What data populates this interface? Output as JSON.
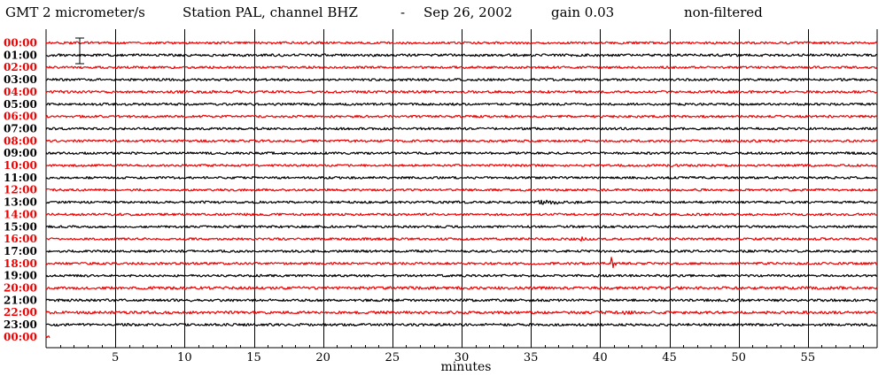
{
  "header": {
    "timezone": "GMT",
    "scale": "2 micrometer/s",
    "station": "Station PAL, channel BHZ",
    "separator": "-",
    "date": "Sep 26, 2002",
    "gain": "gain 0.03",
    "filter": "non-filtered"
  },
  "colors": {
    "background": "#ffffff",
    "trace_red": "#ee0000",
    "trace_black": "#000000",
    "grid": "#000000"
  },
  "chart_data": {
    "type": "line",
    "title": "GMT  2 micrometer/s  Station PAL, channel BHZ  -  Sep 26, 2002      gain 0.03          non-filtered",
    "xlabel": "minutes",
    "ylabel": "",
    "xlim": [
      0,
      60
    ],
    "x_ticks": [
      5,
      10,
      15,
      20,
      25,
      30,
      35,
      40,
      45,
      50,
      55
    ],
    "x_tick_labels": [
      "5",
      "10",
      "15",
      "20",
      "25",
      "30",
      "35",
      "40",
      "45",
      "50",
      "55"
    ],
    "grid": "vertical every 5 minutes",
    "scale_bar_units": "micrometer/s",
    "row_labels": [
      "00:00",
      "01:00",
      "02:00",
      "03:00",
      "04:00",
      "05:00",
      "06:00",
      "07:00",
      "08:00",
      "09:00",
      "10:00",
      "11:00",
      "12:00",
      "13:00",
      "14:00",
      "15:00",
      "16:00",
      "17:00",
      "18:00",
      "19:00",
      "20:00",
      "21:00",
      "22:00",
      "23:00",
      "00:00"
    ],
    "row_colors": [
      "red",
      "black",
      "red",
      "black",
      "red",
      "black",
      "red",
      "black",
      "red",
      "black",
      "red",
      "black",
      "red",
      "black",
      "red",
      "black",
      "red",
      "black",
      "red",
      "black",
      "red",
      "black",
      "red",
      "black",
      "red"
    ],
    "series": [
      {
        "hour": 0,
        "color": "red",
        "end_minute": 60,
        "noise": 1.0,
        "events": []
      },
      {
        "hour": 1,
        "color": "black",
        "end_minute": 60,
        "noise": 1.1,
        "events": []
      },
      {
        "hour": 2,
        "color": "red",
        "end_minute": 60,
        "noise": 1.0,
        "events": []
      },
      {
        "hour": 3,
        "color": "black",
        "end_minute": 60,
        "noise": 1.0,
        "events": []
      },
      {
        "hour": 4,
        "color": "red",
        "end_minute": 60,
        "noise": 1.1,
        "events": []
      },
      {
        "hour": 5,
        "color": "black",
        "end_minute": 60,
        "noise": 1.0,
        "events": []
      },
      {
        "hour": 6,
        "color": "red",
        "end_minute": 60,
        "noise": 1.0,
        "events": []
      },
      {
        "hour": 7,
        "color": "black",
        "end_minute": 60,
        "noise": 1.0,
        "events": []
      },
      {
        "hour": 8,
        "color": "red",
        "end_minute": 60,
        "noise": 1.0,
        "events": []
      },
      {
        "hour": 9,
        "color": "black",
        "end_minute": 60,
        "noise": 1.0,
        "events": []
      },
      {
        "hour": 10,
        "color": "red",
        "end_minute": 60,
        "noise": 1.0,
        "events": []
      },
      {
        "hour": 11,
        "color": "black",
        "end_minute": 60,
        "noise": 1.0,
        "events": []
      },
      {
        "hour": 12,
        "color": "red",
        "end_minute": 60,
        "noise": 1.0,
        "events": []
      },
      {
        "hour": 13,
        "color": "black",
        "end_minute": 60,
        "noise": 1.0,
        "events": [
          {
            "minute": 35.5,
            "duration": 3.0,
            "amplitude": 3.5
          }
        ]
      },
      {
        "hour": 14,
        "color": "red",
        "end_minute": 60,
        "noise": 1.0,
        "events": []
      },
      {
        "hour": 15,
        "color": "black",
        "end_minute": 60,
        "noise": 1.0,
        "events": []
      },
      {
        "hour": 16,
        "color": "red",
        "end_minute": 60,
        "noise": 1.0,
        "events": [
          {
            "minute": 38.6,
            "duration": 0.3,
            "amplitude": 6.0
          }
        ]
      },
      {
        "hour": 17,
        "color": "black",
        "end_minute": 60,
        "noise": 1.0,
        "events": []
      },
      {
        "hour": 18,
        "color": "red",
        "end_minute": 60,
        "noise": 1.0,
        "events": [
          {
            "minute": 40.8,
            "duration": 0.4,
            "amplitude": 9.0
          }
        ]
      },
      {
        "hour": 19,
        "color": "black",
        "end_minute": 60,
        "noise": 1.0,
        "events": []
      },
      {
        "hour": 20,
        "color": "red",
        "end_minute": 60,
        "noise": 1.2,
        "events": []
      },
      {
        "hour": 21,
        "color": "black",
        "end_minute": 60,
        "noise": 1.1,
        "events": []
      },
      {
        "hour": 22,
        "color": "red",
        "end_minute": 60,
        "noise": 1.2,
        "events": [
          {
            "minute": 41.8,
            "duration": 0.5,
            "amplitude": 2.5
          }
        ]
      },
      {
        "hour": 23,
        "color": "black",
        "end_minute": 60,
        "noise": 1.1,
        "events": []
      },
      {
        "hour": 24,
        "color": "red",
        "end_minute": 0.3,
        "noise": 1.0,
        "events": []
      }
    ]
  }
}
